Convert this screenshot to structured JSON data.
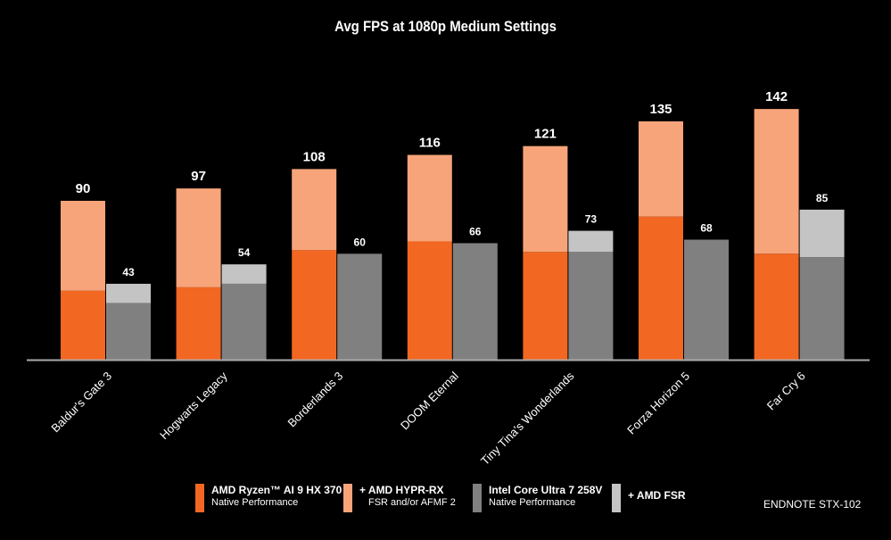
{
  "chart_data": {
    "type": "bar",
    "title": "Avg FPS at 1080p Medium Settings",
    "categories": [
      "Baldur's Gate 3",
      "Hogwarts Legacy",
      "Borderlands 3",
      "DOOM Eternal",
      "Tiny Tina's Wonderlands",
      "Forza Horizon 5",
      "Far Cry 6"
    ],
    "ylim": [
      0,
      145
    ],
    "grid": false,
    "stacked": true,
    "series": [
      {
        "name": "AMD Ryzen™ AI 9 HX 370",
        "subtitle": "Native Performance",
        "stack": "amd",
        "color": "#f26722",
        "values": [
          39,
          41,
          62,
          67,
          61,
          81,
          60
        ]
      },
      {
        "name": "+ AMD HYPR-RX",
        "subtitle": "FSR and/or AFMF 2",
        "stack": "amd",
        "color": "#f7a47a",
        "totals": [
          90,
          97,
          108,
          116,
          121,
          135,
          142
        ]
      },
      {
        "name": "Intel Core Ultra 7 258V",
        "subtitle": "Native Performance",
        "stack": "intel",
        "color": "#808080",
        "values": [
          32,
          43,
          60,
          66,
          61,
          68,
          58
        ]
      },
      {
        "name": "+ AMD FSR",
        "subtitle": "",
        "stack": "intel",
        "color": "#c4c4c4",
        "totals": [
          43,
          54,
          60,
          66,
          73,
          68,
          85
        ]
      }
    ],
    "legend_position": "bottom"
  },
  "endnote": "ENDNOTE STX-102"
}
